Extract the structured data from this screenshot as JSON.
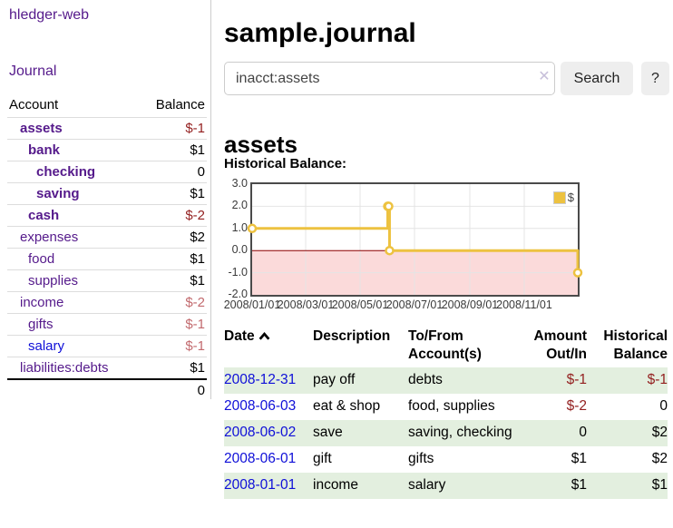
{
  "sidebar": {
    "app_title": "hledger-web",
    "journal_link": "Journal",
    "table": {
      "account_header": "Account",
      "balance_header": "Balance",
      "accounts": [
        {
          "name": "assets",
          "balance": "$-1"
        },
        {
          "name": "bank",
          "balance": "$1"
        },
        {
          "name": "checking",
          "balance": "0"
        },
        {
          "name": "saving",
          "balance": "$1"
        },
        {
          "name": "cash",
          "balance": "$-2"
        },
        {
          "name": "expenses",
          "balance": "$2"
        },
        {
          "name": "food",
          "balance": "$1"
        },
        {
          "name": "supplies",
          "balance": "$1"
        },
        {
          "name": "income",
          "balance": "$-2"
        },
        {
          "name": "gifts",
          "balance": "$-1"
        },
        {
          "name": "salary",
          "balance": "$-1"
        },
        {
          "name": "liabilities:debts",
          "balance": "$1"
        }
      ],
      "total": "0"
    }
  },
  "header": {
    "title": "sample.journal"
  },
  "search": {
    "value": "inacct:assets",
    "clear_icon": "✕",
    "button_label": "Search",
    "help_label": "?"
  },
  "account_page": {
    "heading": "assets",
    "chart_title": "Historical Balance:"
  },
  "chart_data": {
    "type": "line",
    "step": true,
    "title": "Historical Balance",
    "legend_label": "$",
    "legend_position": "top-right",
    "grid": true,
    "ylim": [
      -2,
      3
    ],
    "x_range": [
      "2008-01-01",
      "2008-12-31"
    ],
    "yticks": [
      "3.0",
      "2.0",
      "1.0",
      "0.0",
      "-1.0",
      "-2.0"
    ],
    "ytick_values": [
      3,
      2,
      1,
      0,
      -1,
      -2
    ],
    "xticks": [
      "2008/01/01",
      "2008/03/01",
      "2008/05/01",
      "2008/07/01",
      "2008/09/01",
      "2008/11/01"
    ],
    "series": [
      {
        "name": "$",
        "points": [
          [
            "2008-01-01",
            1
          ],
          [
            "2008-06-01",
            2
          ],
          [
            "2008-06-02",
            2
          ],
          [
            "2008-06-03",
            0
          ],
          [
            "2008-12-31",
            -1
          ]
        ]
      }
    ],
    "colors": {
      "line": "#edc240",
      "marker_fill": "#ffffff",
      "zero_line": "#8b0000",
      "negative_region_fill": "#fbdada",
      "gridline": "#e4e4e4",
      "border": "#4a4a4a"
    }
  },
  "register": {
    "columns": {
      "date": "Date",
      "description": "Description",
      "accounts_line1": "To/From",
      "accounts_line2": "Account(s)",
      "amount_line1": "Amount",
      "amount_line2": "Out/In",
      "balance_line1": "Historical",
      "balance_line2": "Balance"
    },
    "rows": [
      {
        "date": "2008-12-31",
        "description": "pay off",
        "accounts": "debts",
        "amount": "$-1",
        "balance": "$-1"
      },
      {
        "date": "2008-06-03",
        "description": "eat & shop",
        "accounts": "food, supplies",
        "amount": "$-2",
        "balance": "0"
      },
      {
        "date": "2008-06-02",
        "description": "save",
        "accounts": "saving, checking",
        "amount": "0",
        "balance": "$2"
      },
      {
        "date": "2008-06-01",
        "description": "gift",
        "accounts": "gifts",
        "amount": "$1",
        "balance": "$2"
      },
      {
        "date": "2008-01-01",
        "description": "income",
        "accounts": "salary",
        "amount": "$1",
        "balance": "$1"
      }
    ]
  }
}
